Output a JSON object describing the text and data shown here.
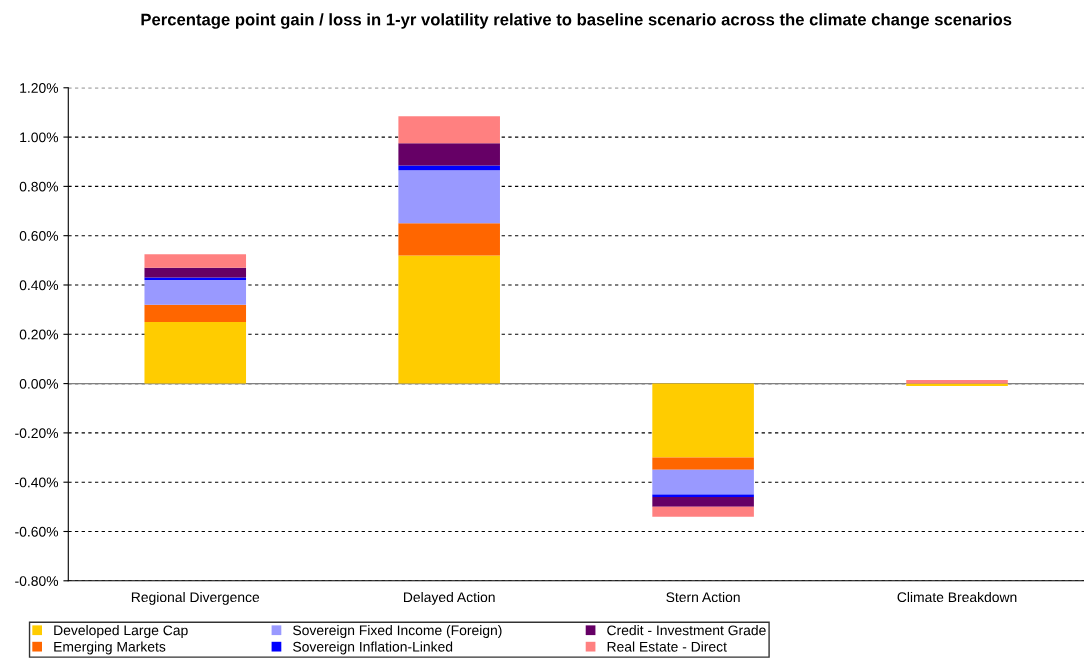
{
  "chart_data": {
    "type": "bar",
    "stacked": true,
    "title": "Percentage point gain / loss in 1-yr volatility relative to baseline scenario across the climate change scenarios",
    "categories": [
      "Regional Divergence",
      "Delayed Action",
      "Stern Action",
      "Climate Breakdown"
    ],
    "series": [
      {
        "name": "Developed Large Cap",
        "color": "#ffcc00",
        "values": [
          0.25,
          0.52,
          -0.3,
          -0.01
        ]
      },
      {
        "name": "Emerging Markets",
        "color": "#ff6600",
        "values": [
          0.07,
          0.13,
          -0.05,
          0
        ]
      },
      {
        "name": "Sovereign Fixed Income (Foreign)",
        "color": "#9999ff",
        "values": [
          0.1,
          0.215,
          -0.1,
          0
        ]
      },
      {
        "name": "Sovereign Inflation-Linked",
        "color": "#0000ff",
        "values": [
          0.01,
          0.02,
          -0.01,
          0
        ]
      },
      {
        "name": "Credit - Investment Grade",
        "color": "#660066",
        "values": [
          0.04,
          0.09,
          -0.04,
          0
        ]
      },
      {
        "name": "Real Estate - Direct",
        "color": "#ff8080",
        "values": [
          0.055,
          0.11,
          -0.04,
          0.015
        ]
      }
    ],
    "ylim": [
      -0.8,
      1.2
    ],
    "yticks": [
      {
        "value": -0.8,
        "label": "-0.80%"
      },
      {
        "value": -0.6,
        "label": "-0.60%"
      },
      {
        "value": -0.4,
        "label": "-0.40%"
      },
      {
        "value": -0.2,
        "label": "-0.20%"
      },
      {
        "value": 0,
        "label": "0.00%"
      },
      {
        "value": 0.2,
        "label": "0.20%"
      },
      {
        "value": 0.4,
        "label": "0.40%"
      },
      {
        "value": 0.6,
        "label": "0.60%"
      },
      {
        "value": 0.8,
        "label": "0.80%"
      },
      {
        "value": 1.0,
        "label": "1.00%"
      },
      {
        "value": 1.2,
        "label": "1.20%"
      }
    ],
    "grid": "y",
    "legend": "bottom"
  }
}
